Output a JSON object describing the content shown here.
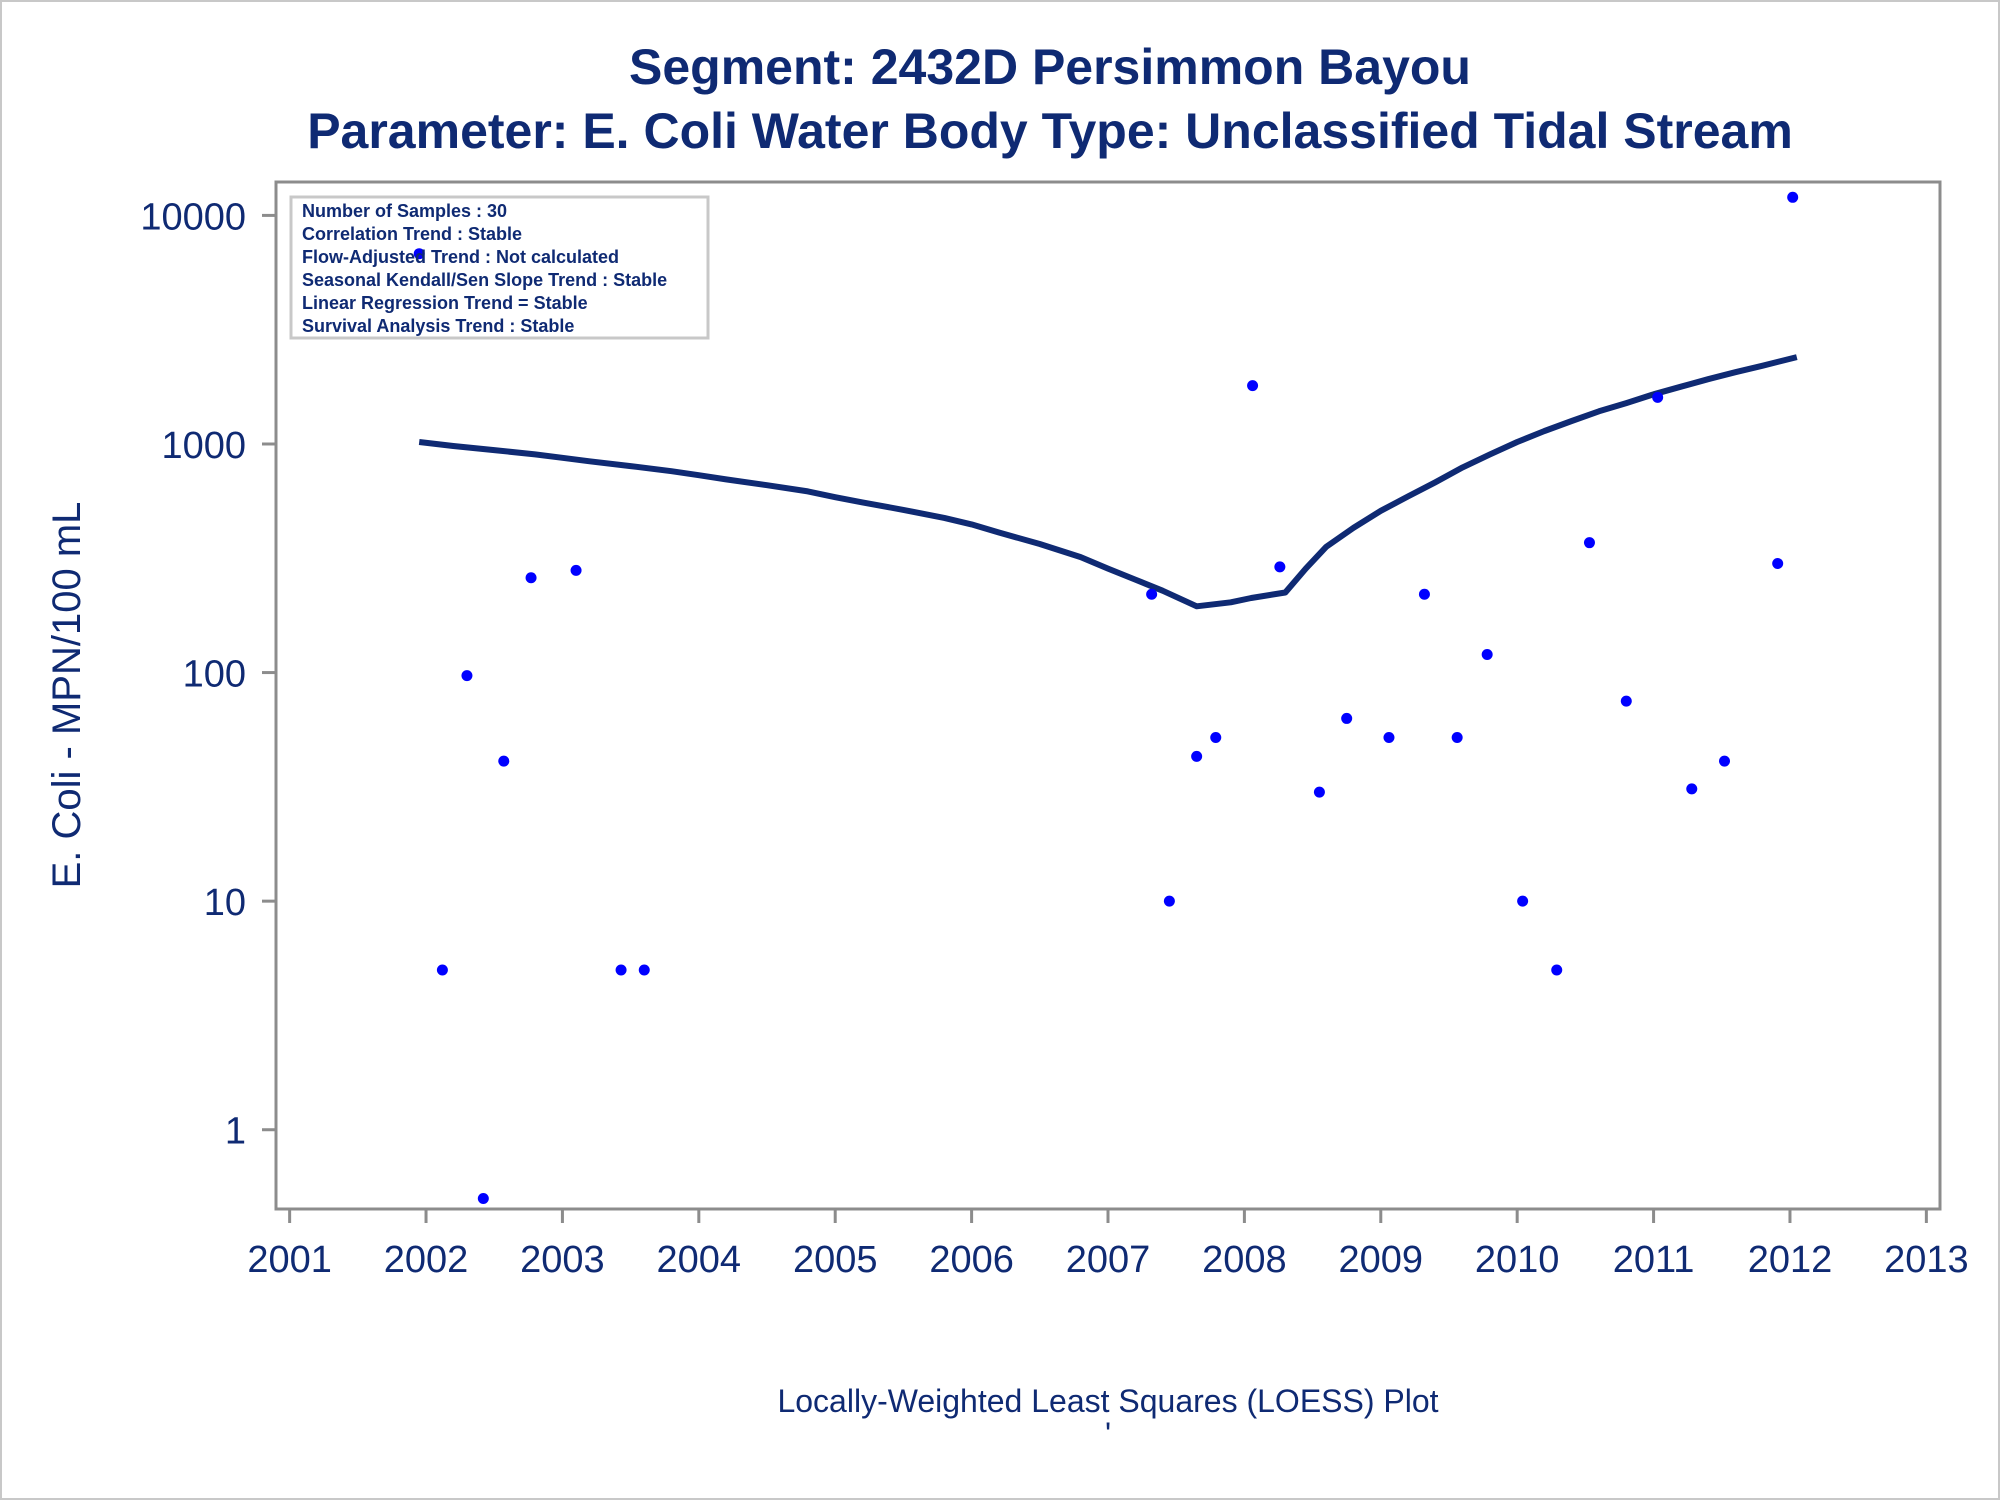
{
  "chart_data": {
    "type": "scatter",
    "title": "Segment: 2432D  Persimmon Bayou",
    "subtitle": "Parameter: E. Coli   Water Body Type: Unclassified Tidal Stream",
    "xlabel": "Locally-Weighted Least Squares (LOESS) Plot",
    "ylabel": "E. Coli - MPN/100 mL",
    "footnote": "'",
    "x_ticks": [
      "2001",
      "2002",
      "2003",
      "2004",
      "2005",
      "2006",
      "2007",
      "2008",
      "2009",
      "2010",
      "2011",
      "2012",
      "2013"
    ],
    "y_ticks": [
      "1",
      "10",
      "100",
      "1000",
      "10000"
    ],
    "xlim": [
      2000.9,
      2013.1
    ],
    "ylim": [
      0.45,
      14000
    ],
    "y_scale": "log",
    "grid": false,
    "info_box": {
      "placement": "top-left",
      "lines": [
        "Number of Samples : 30",
        "Correlation Trend : Stable",
        "Flow-Adjusted Trend : Not calculated",
        "Seasonal Kendall/Sen Slope Trend : Stable",
        "Linear Regression Trend = Stable",
        "Survival Analysis Trend : Stable"
      ]
    },
    "series": [
      {
        "kind": "points",
        "color": "#0000ff",
        "points": [
          {
            "x": 2001.95,
            "y": 6800
          },
          {
            "x": 2002.12,
            "y": 5
          },
          {
            "x": 2002.3,
            "y": 97
          },
          {
            "x": 2002.42,
            "y": 0.5
          },
          {
            "x": 2002.57,
            "y": 41
          },
          {
            "x": 2002.77,
            "y": 260
          },
          {
            "x": 2003.1,
            "y": 280
          },
          {
            "x": 2003.43,
            "y": 5
          },
          {
            "x": 2003.6,
            "y": 5
          },
          {
            "x": 2007.32,
            "y": 220
          },
          {
            "x": 2007.45,
            "y": 10
          },
          {
            "x": 2007.65,
            "y": 43
          },
          {
            "x": 2007.79,
            "y": 52
          },
          {
            "x": 2008.06,
            "y": 1800
          },
          {
            "x": 2008.26,
            "y": 290
          },
          {
            "x": 2008.55,
            "y": 30
          },
          {
            "x": 2008.75,
            "y": 63
          },
          {
            "x": 2009.06,
            "y": 52
          },
          {
            "x": 2009.32,
            "y": 220
          },
          {
            "x": 2009.56,
            "y": 52
          },
          {
            "x": 2009.78,
            "y": 120
          },
          {
            "x": 2010.04,
            "y": 10
          },
          {
            "x": 2010.29,
            "y": 5
          },
          {
            "x": 2010.53,
            "y": 370
          },
          {
            "x": 2010.8,
            "y": 75
          },
          {
            "x": 2011.03,
            "y": 1600
          },
          {
            "x": 2011.28,
            "y": 31
          },
          {
            "x": 2011.52,
            "y": 41
          },
          {
            "x": 2011.91,
            "y": 300
          },
          {
            "x": 2012.02,
            "y": 12000
          }
        ]
      },
      {
        "kind": "loess",
        "color": "#0f2a73",
        "points": [
          {
            "x": 2001.95,
            "y": 1020
          },
          {
            "x": 2002.2,
            "y": 980
          },
          {
            "x": 2002.5,
            "y": 940
          },
          {
            "x": 2002.8,
            "y": 900
          },
          {
            "x": 2003.0,
            "y": 870
          },
          {
            "x": 2003.2,
            "y": 840
          },
          {
            "x": 2003.5,
            "y": 800
          },
          {
            "x": 2003.8,
            "y": 760
          },
          {
            "x": 2004.0,
            "y": 730
          },
          {
            "x": 2004.2,
            "y": 700
          },
          {
            "x": 2004.5,
            "y": 660
          },
          {
            "x": 2004.8,
            "y": 620
          },
          {
            "x": 2005.0,
            "y": 585
          },
          {
            "x": 2005.2,
            "y": 555
          },
          {
            "x": 2005.5,
            "y": 515
          },
          {
            "x": 2005.8,
            "y": 475
          },
          {
            "x": 2006.0,
            "y": 445
          },
          {
            "x": 2006.2,
            "y": 410
          },
          {
            "x": 2006.5,
            "y": 365
          },
          {
            "x": 2006.8,
            "y": 320
          },
          {
            "x": 2007.0,
            "y": 285
          },
          {
            "x": 2007.2,
            "y": 255
          },
          {
            "x": 2007.4,
            "y": 228
          },
          {
            "x": 2007.65,
            "y": 195
          },
          {
            "x": 2007.9,
            "y": 203
          },
          {
            "x": 2008.05,
            "y": 212
          },
          {
            "x": 2008.3,
            "y": 224
          },
          {
            "x": 2008.45,
            "y": 285
          },
          {
            "x": 2008.6,
            "y": 355
          },
          {
            "x": 2008.8,
            "y": 430
          },
          {
            "x": 2009.0,
            "y": 510
          },
          {
            "x": 2009.2,
            "y": 590
          },
          {
            "x": 2009.4,
            "y": 680
          },
          {
            "x": 2009.6,
            "y": 790
          },
          {
            "x": 2009.8,
            "y": 900
          },
          {
            "x": 2010.0,
            "y": 1020
          },
          {
            "x": 2010.2,
            "y": 1140
          },
          {
            "x": 2010.4,
            "y": 1260
          },
          {
            "x": 2010.6,
            "y": 1390
          },
          {
            "x": 2010.8,
            "y": 1510
          },
          {
            "x": 2011.0,
            "y": 1650
          },
          {
            "x": 2011.2,
            "y": 1780
          },
          {
            "x": 2011.4,
            "y": 1920
          },
          {
            "x": 2011.6,
            "y": 2060
          },
          {
            "x": 2011.8,
            "y": 2200
          },
          {
            "x": 2012.05,
            "y": 2400
          }
        ]
      }
    ]
  }
}
